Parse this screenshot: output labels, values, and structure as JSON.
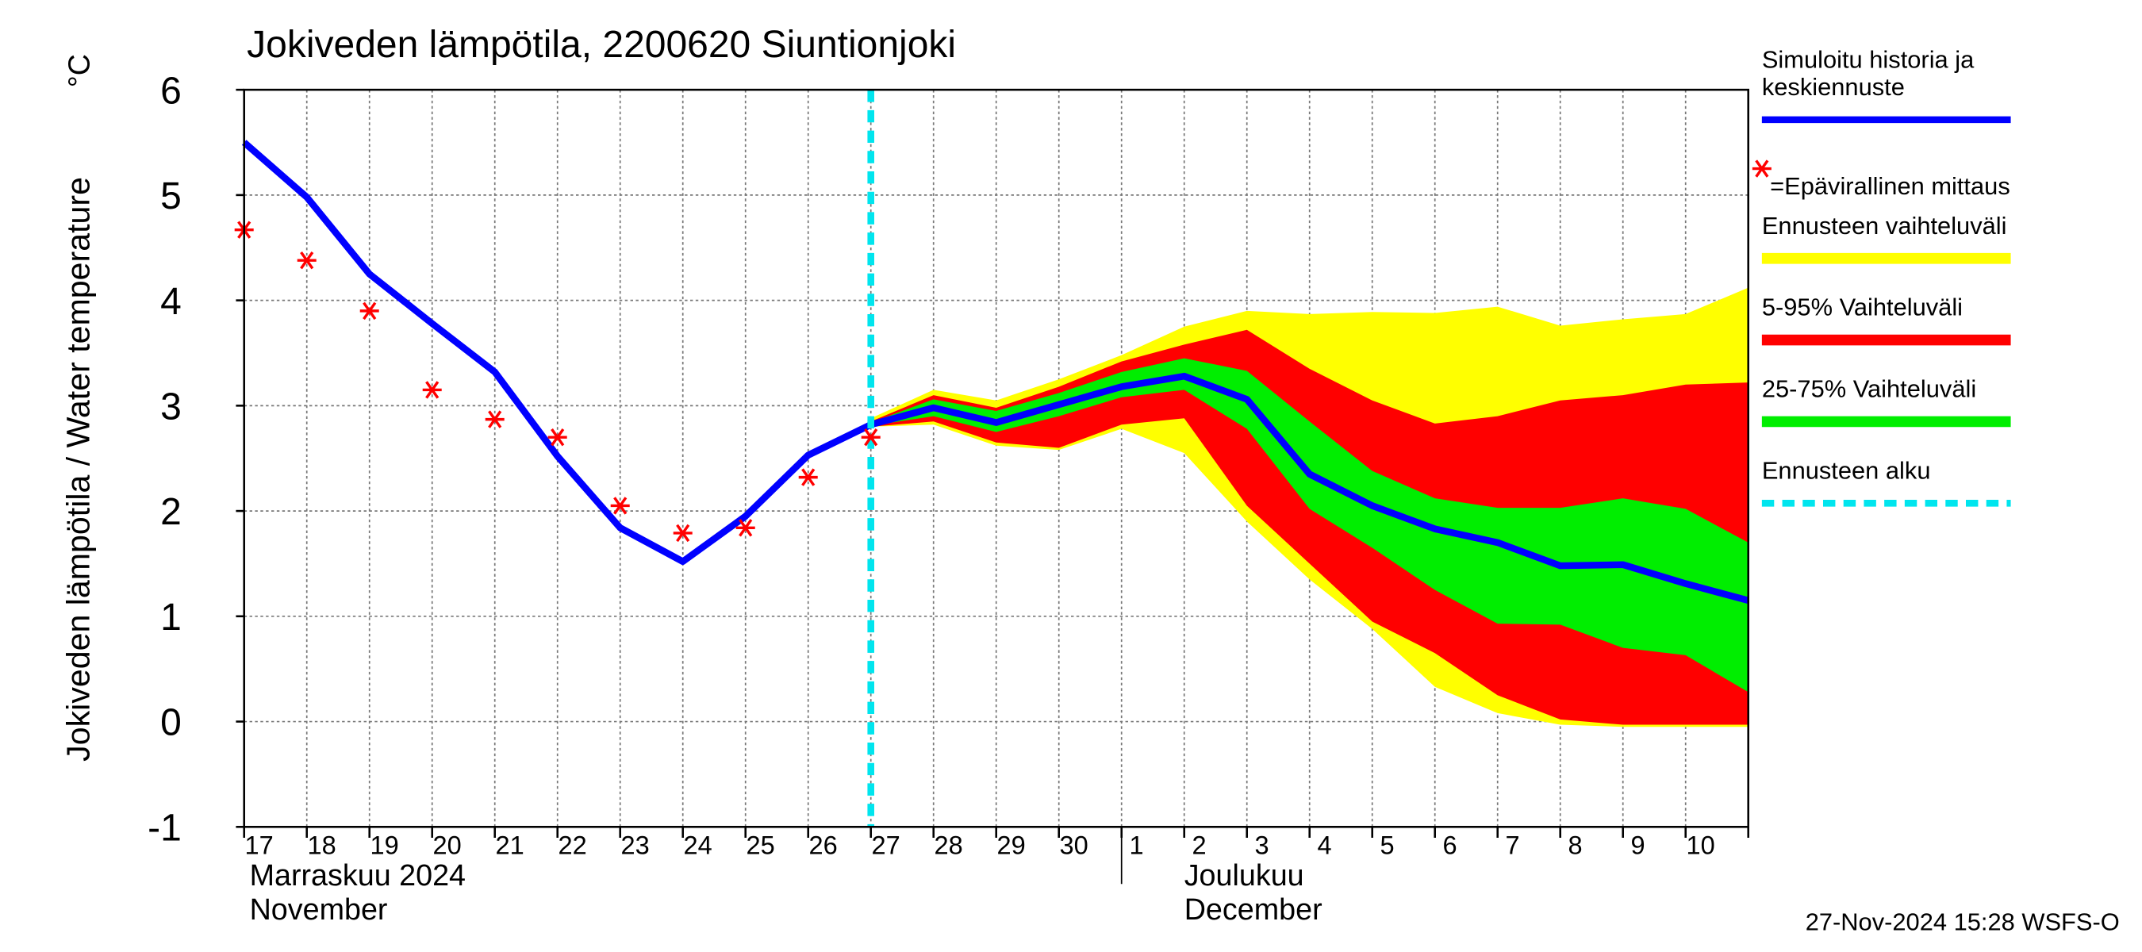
{
  "chart_data": {
    "type": "line",
    "title": "Jokiveden lämpötila, 2200620 Siuntionjoki",
    "y_label": "Jokiveden lämpötila / Water temperature",
    "y_unit": "°C",
    "categories": [
      "17",
      "18",
      "19",
      "20",
      "21",
      "22",
      "23",
      "24",
      "25",
      "26",
      "27",
      "28",
      "29",
      "30",
      "1",
      "2",
      "3",
      "4",
      "5",
      "6",
      "7",
      "8",
      "9",
      "10",
      null
    ],
    "month_labels": [
      {
        "fi": "Marraskuu 2024",
        "en": "November"
      },
      {
        "fi": "Joulukuu",
        "en": "December"
      }
    ],
    "ylim": [
      -1,
      6
    ],
    "yticks": [
      -1,
      0,
      1,
      2,
      3,
      4,
      5,
      6
    ],
    "grid": true,
    "series": [
      {
        "name": "Ennusteen vaihteluväli",
        "color": "#ffff00",
        "style": "band",
        "values": [
          null,
          null,
          null,
          null,
          null,
          null,
          null,
          null,
          null,
          null,
          2.88,
          3.15,
          3.05,
          3.25,
          3.48,
          3.75,
          3.9,
          3.87,
          3.89,
          3.88,
          3.94,
          3.76,
          3.82,
          3.87,
          4.12
        ],
        "low": [
          null,
          null,
          null,
          null,
          null,
          null,
          null,
          null,
          null,
          null,
          2.8,
          2.82,
          2.62,
          2.58,
          2.78,
          2.55,
          1.9,
          1.35,
          0.88,
          0.33,
          0.08,
          -0.03,
          -0.05,
          -0.05,
          -0.05
        ]
      },
      {
        "name": "5-95% Vaihteluväli",
        "color": "#ff0000",
        "style": "band",
        "values": [
          null,
          null,
          null,
          null,
          null,
          null,
          null,
          null,
          null,
          null,
          2.85,
          3.1,
          2.98,
          3.18,
          3.42,
          3.58,
          3.72,
          3.35,
          3.05,
          2.83,
          2.9,
          3.05,
          3.1,
          3.2,
          3.22
        ],
        "low": [
          null,
          null,
          null,
          null,
          null,
          null,
          null,
          null,
          null,
          null,
          2.8,
          2.85,
          2.65,
          2.6,
          2.82,
          2.88,
          2.05,
          1.5,
          0.95,
          0.65,
          0.25,
          0.02,
          -0.03,
          -0.03,
          -0.03
        ]
      },
      {
        "name": "25-75% Vaihteluväli",
        "color": "#00ee00",
        "style": "band",
        "values": [
          null,
          null,
          null,
          null,
          null,
          null,
          null,
          null,
          null,
          null,
          2.84,
          3.06,
          2.95,
          3.12,
          3.32,
          3.45,
          3.33,
          2.85,
          2.38,
          2.12,
          2.03,
          2.03,
          2.12,
          2.02,
          1.7
        ],
        "low": [
          null,
          null,
          null,
          null,
          null,
          null,
          null,
          null,
          null,
          null,
          2.81,
          2.9,
          2.75,
          2.9,
          3.08,
          3.15,
          2.78,
          2.02,
          1.65,
          1.25,
          0.93,
          0.92,
          0.7,
          0.63,
          0.28
        ]
      },
      {
        "name": "Simuloitu historia ja\nkeskiennuste",
        "color": "#0000ff",
        "style": "line",
        "values": [
          5.5,
          4.98,
          4.25,
          3.78,
          3.32,
          2.52,
          1.84,
          1.52,
          1.95,
          2.53,
          2.82,
          2.98,
          2.84,
          3.01,
          3.18,
          3.28,
          3.06,
          2.35,
          2.05,
          1.83,
          1.7,
          1.48,
          1.49,
          1.31,
          1.15
        ]
      },
      {
        "name": "=Epävirallinen mittaus",
        "color": "#ff0000",
        "style": "marker",
        "values": [
          4.67,
          4.38,
          3.9,
          3.15,
          2.87,
          2.7,
          2.05,
          1.79,
          1.84,
          2.32,
          2.7,
          null,
          null,
          null,
          null,
          null,
          null,
          null,
          null,
          null,
          null,
          null,
          null,
          null,
          null
        ]
      }
    ],
    "forecast_start": {
      "name": "Ennusteen alku",
      "x": "27",
      "color": "#00e5ee"
    },
    "footer": "27-Nov-2024 15:28 WSFS-O"
  }
}
